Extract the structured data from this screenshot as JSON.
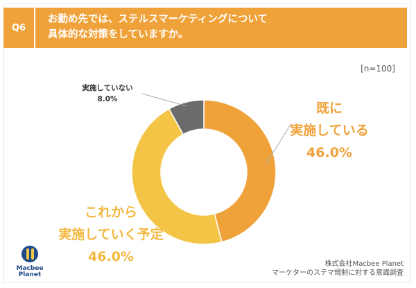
{
  "header": {
    "question_number": "Q6",
    "question_line1": "お勤め先では、ステルスマーケティングについて",
    "question_line2": "具体的な対策をしていますか。"
  },
  "sample_size": "[n=100]",
  "colors": {
    "accent": "#f0a23a",
    "implemented": "#f0a23a",
    "planned": "#f3c445",
    "not_implemented": "#6b6b6b"
  },
  "chart_data": {
    "type": "pie",
    "donut": true,
    "slices": [
      {
        "label": "既に実施している",
        "label_lines": [
          "既に",
          "実施している"
        ],
        "value": 46.0,
        "value_label": "46.0%",
        "color": "#f0a23a"
      },
      {
        "label": "実施していく予定",
        "label_lines": [
          "これから",
          "実施していく予定"
        ],
        "value": 46.0,
        "value_label": "46.0%",
        "color": "#f3c445"
      },
      {
        "label": "実施していない",
        "label_lines": [
          "実施していない"
        ],
        "value": 8.0,
        "value_label": "8.0%",
        "color": "#6b6b6b"
      }
    ]
  },
  "logo": {
    "line1": "Macbee",
    "line2": "Planet"
  },
  "source": {
    "line1": "株式会社Macbee Planet",
    "line2": "マーケターのステマ規制に対する意識調査"
  }
}
